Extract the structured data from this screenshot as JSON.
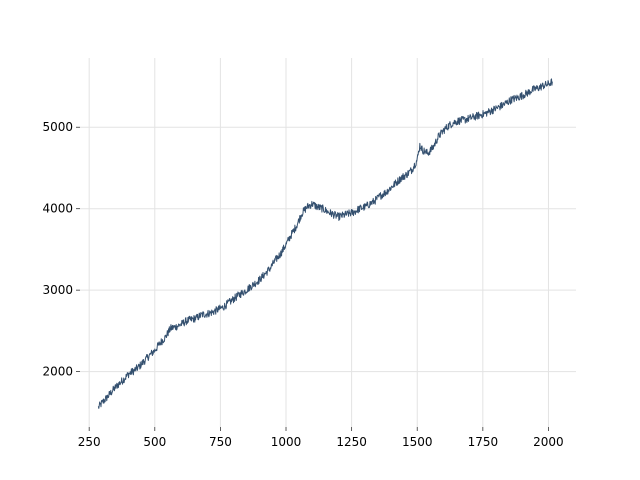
{
  "chart_data": {
    "type": "line",
    "title": "",
    "xlabel": "",
    "ylabel": "",
    "xlim": [
      215,
      2105
    ],
    "ylim": [
      1320,
      5850
    ],
    "grid": true,
    "legend": "none",
    "x_ticks": [
      {
        "value": 250,
        "label": "250"
      },
      {
        "value": 500,
        "label": "500"
      },
      {
        "value": 750,
        "label": "750"
      },
      {
        "value": 1000,
        "label": "1000"
      },
      {
        "value": 1250,
        "label": "1250"
      },
      {
        "value": 1500,
        "label": "1500"
      },
      {
        "value": 1750,
        "label": "1750"
      },
      {
        "value": 2000,
        "label": "2000"
      }
    ],
    "y_ticks": [
      {
        "value": 2000,
        "label": "2000"
      },
      {
        "value": 3000,
        "label": "3000"
      },
      {
        "value": 4000,
        "label": "4000"
      },
      {
        "value": 5000,
        "label": "5000"
      }
    ],
    "series": [
      {
        "color": "#34506f",
        "x": [
          285,
          300,
          320,
          340,
          360,
          380,
          400,
          420,
          440,
          460,
          480,
          500,
          520,
          540,
          560,
          580,
          600,
          620,
          640,
          660,
          680,
          700,
          720,
          740,
          760,
          780,
          800,
          820,
          840,
          860,
          880,
          900,
          920,
          940,
          960,
          980,
          1000,
          1020,
          1040,
          1060,
          1080,
          1100,
          1120,
          1140,
          1160,
          1180,
          1200,
          1220,
          1240,
          1260,
          1280,
          1300,
          1320,
          1340,
          1360,
          1380,
          1400,
          1420,
          1440,
          1460,
          1480,
          1500,
          1510,
          1520,
          1540,
          1560,
          1580,
          1600,
          1620,
          1640,
          1660,
          1680,
          1700,
          1720,
          1740,
          1760,
          1780,
          1800,
          1820,
          1840,
          1860,
          1880,
          1900,
          1920,
          1940,
          1960,
          1980,
          2000,
          2015
        ],
        "values": [
          1560,
          1620,
          1690,
          1770,
          1840,
          1900,
          1970,
          2010,
          2060,
          2130,
          2200,
          2260,
          2350,
          2420,
          2530,
          2550,
          2580,
          2620,
          2640,
          2660,
          2700,
          2710,
          2730,
          2760,
          2790,
          2840,
          2890,
          2940,
          2980,
          3030,
          3080,
          3130,
          3200,
          3270,
          3370,
          3450,
          3560,
          3680,
          3790,
          3940,
          4020,
          4060,
          4020,
          4000,
          3960,
          3930,
          3900,
          3920,
          3940,
          3960,
          4000,
          4020,
          4060,
          4100,
          4160,
          4200,
          4260,
          4320,
          4380,
          4420,
          4480,
          4600,
          4780,
          4720,
          4680,
          4750,
          4880,
          4960,
          5020,
          5060,
          5080,
          5090,
          5110,
          5130,
          5150,
          5170,
          5200,
          5230,
          5260,
          5300,
          5340,
          5360,
          5390,
          5420,
          5460,
          5480,
          5510,
          5530,
          5560
        ]
      }
    ]
  }
}
